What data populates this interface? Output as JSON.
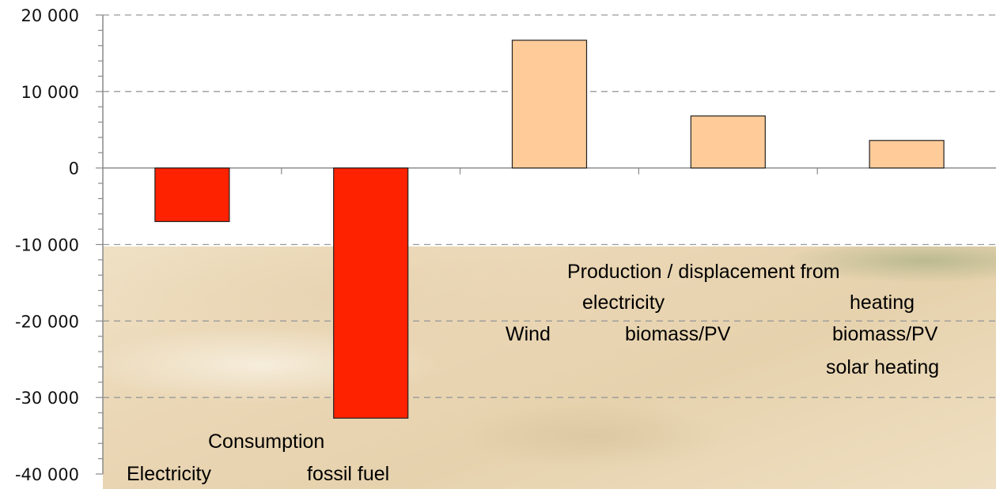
{
  "chart_data": {
    "type": "bar",
    "categories": [
      "Electricity",
      "fossil fuel",
      "Wind",
      "biomass/PV",
      "biomass/PV solar heating"
    ],
    "values": [
      -7000,
      -32700,
      16700,
      6800,
      3600
    ],
    "ylim": [
      -40000,
      20000
    ],
    "ytick_values": [
      -40000,
      -30000,
      -20000,
      -10000,
      0,
      10000,
      20000
    ],
    "ytick_labels": [
      "-40 000",
      "-30 000",
      "-20 000",
      "-10 000",
      "0",
      "10 000",
      "20 000"
    ],
    "bar_colors": [
      "#ff2200",
      "#ff2200",
      "#ffcc99",
      "#ffcc99",
      "#ffcc99"
    ],
    "grid": "dashed horizontal at major ticks",
    "annotations": {
      "consumption_group": "Consumption",
      "consumption_labels": [
        "Electricity",
        "fossil fuel"
      ],
      "production_group": "Production / displacement from",
      "production_subgroups": [
        "electricity",
        "heating"
      ],
      "production_labels": [
        "Wind",
        "biomass/PV",
        "biomass/PV",
        "solar heating"
      ]
    }
  }
}
